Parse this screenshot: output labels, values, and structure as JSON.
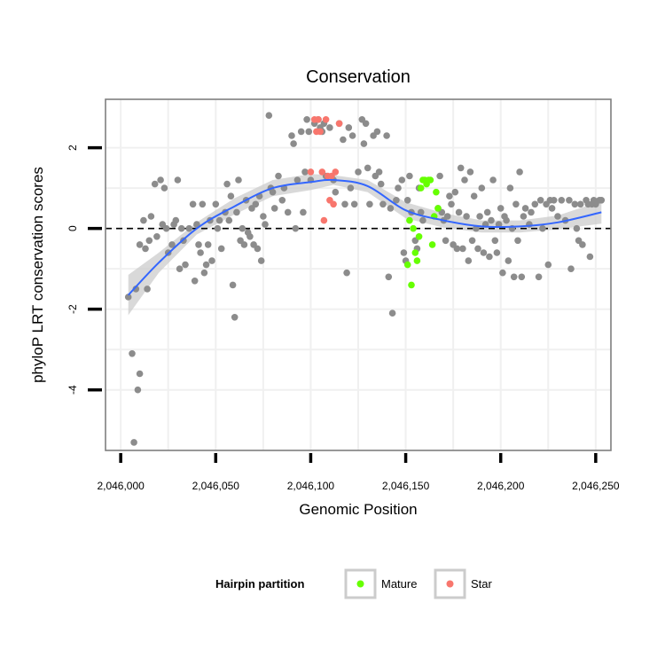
{
  "colors": {
    "background_points": "#8c8c8c",
    "mature": "#66ff00",
    "star": "#f8766d",
    "smooth_line": "#3366ff",
    "ci_band": "#cccccc",
    "grid": "#f0f0f0",
    "panel_border": "#7f7f7f"
  },
  "chart_data": {
    "type": "scatter",
    "title": "Conservation",
    "xlabel": "Genomic Position",
    "ylabel": "phyloP LRT conservation scores",
    "xlim": [
      2045992,
      2046258
    ],
    "ylim": [
      -5.5,
      3.2
    ],
    "x_ticks": [
      2046000,
      2046050,
      2046100,
      2046150,
      2046200,
      2046250
    ],
    "x_tick_labels": [
      "2,046,000",
      "2,046,050",
      "2,046,100",
      "2,046,150",
      "2,046,200",
      "2,046,250"
    ],
    "y_ticks": [
      -4,
      -2,
      0,
      2
    ],
    "y_tick_labels": [
      "-4",
      "-2",
      "0",
      "2"
    ],
    "hline": {
      "y": 0,
      "style": "dashed"
    },
    "grid": true,
    "legend": {
      "title": "Hairpin partition",
      "position": "bottom",
      "entries": [
        {
          "label": "Mature",
          "color_key": "mature"
        },
        {
          "label": "Star",
          "color_key": "star"
        }
      ]
    },
    "series": [
      {
        "name": "background",
        "points": [
          [
            2046004,
            -1.7
          ],
          [
            2046006,
            -3.1
          ],
          [
            2046007,
            -5.3
          ],
          [
            2046008,
            -1.5
          ],
          [
            2046009,
            -4.0
          ],
          [
            2046010,
            -3.6
          ],
          [
            2046010,
            -0.4
          ],
          [
            2046012,
            0.2
          ],
          [
            2046013,
            -0.5
          ],
          [
            2046014,
            -1.5
          ],
          [
            2046015,
            -0.3
          ],
          [
            2046016,
            0.3
          ],
          [
            2046018,
            1.1
          ],
          [
            2046019,
            -0.2
          ],
          [
            2046021,
            1.2
          ],
          [
            2046022,
            0.1
          ],
          [
            2046023,
            1.0
          ],
          [
            2046024,
            0.0
          ],
          [
            2046025,
            -0.6
          ],
          [
            2046027,
            -0.4
          ],
          [
            2046028,
            0.1
          ],
          [
            2046029,
            0.2
          ],
          [
            2046030,
            1.2
          ],
          [
            2046031,
            -1.0
          ],
          [
            2046032,
            0.0
          ],
          [
            2046033,
            -0.3
          ],
          [
            2046034,
            -0.9
          ],
          [
            2046036,
            0.0
          ],
          [
            2046038,
            0.6
          ],
          [
            2046039,
            -1.3
          ],
          [
            2046040,
            0.1
          ],
          [
            2046041,
            -0.4
          ],
          [
            2046042,
            -0.6
          ],
          [
            2046043,
            0.6
          ],
          [
            2046044,
            -1.1
          ],
          [
            2046045,
            -0.9
          ],
          [
            2046046,
            -0.4
          ],
          [
            2046047,
            0.2
          ],
          [
            2046048,
            -0.8
          ],
          [
            2046050,
            0.6
          ],
          [
            2046051,
            0.0
          ],
          [
            2046052,
            0.2
          ],
          [
            2046053,
            -0.5
          ],
          [
            2046055,
            0.4
          ],
          [
            2046056,
            1.1
          ],
          [
            2046057,
            0.2
          ],
          [
            2046058,
            0.8
          ],
          [
            2046059,
            -1.4
          ],
          [
            2046060,
            -2.2
          ],
          [
            2046061,
            0.4
          ],
          [
            2046062,
            1.2
          ],
          [
            2046063,
            -0.3
          ],
          [
            2046064,
            0.0
          ],
          [
            2046065,
            -0.4
          ],
          [
            2046066,
            0.7
          ],
          [
            2046067,
            -0.1
          ],
          [
            2046068,
            -0.2
          ],
          [
            2046069,
            0.5
          ],
          [
            2046070,
            -0.4
          ],
          [
            2046071,
            0.6
          ],
          [
            2046072,
            -0.5
          ],
          [
            2046073,
            0.8
          ],
          [
            2046074,
            -0.8
          ],
          [
            2046075,
            0.3
          ],
          [
            2046076,
            0.1
          ],
          [
            2046078,
            2.8
          ],
          [
            2046079,
            1.0
          ],
          [
            2046080,
            0.9
          ],
          [
            2046081,
            0.5
          ],
          [
            2046083,
            1.3
          ],
          [
            2046085,
            0.7
          ],
          [
            2046086,
            1.0
          ],
          [
            2046088,
            0.4
          ],
          [
            2046090,
            2.3
          ],
          [
            2046091,
            2.1
          ],
          [
            2046092,
            0.0
          ],
          [
            2046093,
            1.2
          ],
          [
            2046095,
            2.4
          ],
          [
            2046096,
            0.4
          ],
          [
            2046097,
            1.4
          ],
          [
            2046098,
            2.7
          ],
          [
            2046099,
            2.4
          ],
          [
            2046100,
            1.2
          ],
          [
            2046102,
            2.6
          ],
          [
            2046104,
            2.7
          ],
          [
            2046105,
            2.5
          ],
          [
            2046106,
            2.4
          ],
          [
            2046107,
            2.6
          ],
          [
            2046108,
            1.3
          ],
          [
            2046110,
            2.5
          ],
          [
            2046112,
            1.2
          ],
          [
            2046113,
            0.9
          ],
          [
            2046115,
            2.6
          ],
          [
            2046117,
            2.2
          ],
          [
            2046118,
            0.6
          ],
          [
            2046119,
            -1.1
          ],
          [
            2046120,
            2.5
          ],
          [
            2046121,
            1.0
          ],
          [
            2046122,
            2.3
          ],
          [
            2046123,
            0.6
          ],
          [
            2046125,
            1.4
          ],
          [
            2046127,
            2.7
          ],
          [
            2046128,
            2.1
          ],
          [
            2046129,
            2.6
          ],
          [
            2046130,
            1.5
          ],
          [
            2046131,
            0.6
          ],
          [
            2046133,
            2.3
          ],
          [
            2046134,
            1.3
          ],
          [
            2046135,
            2.4
          ],
          [
            2046136,
            1.4
          ],
          [
            2046137,
            1.1
          ],
          [
            2046138,
            0.6
          ],
          [
            2046140,
            2.3
          ],
          [
            2046141,
            -1.2
          ],
          [
            2046142,
            0.5
          ],
          [
            2046143,
            -2.1
          ],
          [
            2046145,
            0.7
          ],
          [
            2046146,
            1.0
          ],
          [
            2046148,
            1.2
          ],
          [
            2046149,
            -0.6
          ],
          [
            2046150,
            -0.8
          ],
          [
            2046151,
            0.7
          ],
          [
            2046152,
            1.3
          ],
          [
            2046153,
            0.4
          ],
          [
            2046155,
            -0.3
          ],
          [
            2046156,
            -0.5
          ],
          [
            2046157,
            1.0
          ],
          [
            2046158,
            0.4
          ],
          [
            2046159,
            0.2
          ],
          [
            2046167,
            0.5
          ],
          [
            2046168,
            1.3
          ],
          [
            2046169,
            0.4
          ],
          [
            2046170,
            0.2
          ],
          [
            2046171,
            -0.3
          ],
          [
            2046172,
            0.3
          ],
          [
            2046173,
            0.8
          ],
          [
            2046174,
            0.6
          ],
          [
            2046175,
            -0.4
          ],
          [
            2046176,
            0.9
          ],
          [
            2046177,
            -0.5
          ],
          [
            2046178,
            0.4
          ],
          [
            2046179,
            1.5
          ],
          [
            2046180,
            -0.5
          ],
          [
            2046181,
            1.2
          ],
          [
            2046182,
            0.3
          ],
          [
            2046183,
            -0.8
          ],
          [
            2046184,
            1.4
          ],
          [
            2046185,
            -0.3
          ],
          [
            2046186,
            0.8
          ],
          [
            2046187,
            0.0
          ],
          [
            2046188,
            -0.5
          ],
          [
            2046189,
            0.3
          ],
          [
            2046190,
            1.0
          ],
          [
            2046191,
            -0.6
          ],
          [
            2046192,
            0.1
          ],
          [
            2046193,
            0.4
          ],
          [
            2046194,
            -0.7
          ],
          [
            2046195,
            0.2
          ],
          [
            2046196,
            1.2
          ],
          [
            2046197,
            -0.3
          ],
          [
            2046198,
            -0.6
          ],
          [
            2046199,
            0.1
          ],
          [
            2046200,
            0.5
          ],
          [
            2046201,
            -1.1
          ],
          [
            2046202,
            0.3
          ],
          [
            2046203,
            0.2
          ],
          [
            2046204,
            -0.8
          ],
          [
            2046205,
            1.0
          ],
          [
            2046206,
            0.0
          ],
          [
            2046207,
            -1.2
          ],
          [
            2046208,
            0.6
          ],
          [
            2046209,
            -0.3
          ],
          [
            2046210,
            1.4
          ],
          [
            2046211,
            -1.2
          ],
          [
            2046212,
            0.3
          ],
          [
            2046213,
            0.5
          ],
          [
            2046215,
            0.1
          ],
          [
            2046216,
            0.4
          ],
          [
            2046218,
            0.6
          ],
          [
            2046220,
            -1.2
          ],
          [
            2046221,
            0.7
          ],
          [
            2046222,
            0.0
          ],
          [
            2046224,
            0.6
          ],
          [
            2046225,
            -0.9
          ],
          [
            2046226,
            0.7
          ],
          [
            2046227,
            0.5
          ],
          [
            2046228,
            0.7
          ],
          [
            2046230,
            0.3
          ],
          [
            2046232,
            0.7
          ],
          [
            2046234,
            0.2
          ],
          [
            2046236,
            0.7
          ],
          [
            2046237,
            -1.0
          ],
          [
            2046239,
            0.6
          ],
          [
            2046240,
            0.0
          ],
          [
            2046241,
            -0.3
          ],
          [
            2046242,
            0.6
          ],
          [
            2046243,
            -0.4
          ],
          [
            2046245,
            0.7
          ],
          [
            2046246,
            0.6
          ],
          [
            2046247,
            -0.7
          ],
          [
            2046248,
            0.6
          ],
          [
            2046249,
            0.7
          ],
          [
            2046250,
            0.6
          ],
          [
            2046252,
            0.7
          ],
          [
            2046253,
            0.7
          ]
        ]
      },
      {
        "name": "Mature",
        "points": [
          [
            2046151,
            -0.9
          ],
          [
            2046152,
            0.2
          ],
          [
            2046153,
            -1.4
          ],
          [
            2046154,
            0.0
          ],
          [
            2046155,
            -0.6
          ],
          [
            2046156,
            -0.8
          ],
          [
            2046157,
            -0.2
          ],
          [
            2046158,
            1.0
          ],
          [
            2046159,
            1.2
          ],
          [
            2046160,
            1.2
          ],
          [
            2046161,
            1.1
          ],
          [
            2046162,
            1.2
          ],
          [
            2046163,
            1.2
          ],
          [
            2046164,
            -0.4
          ],
          [
            2046165,
            0.3
          ],
          [
            2046166,
            0.9
          ],
          [
            2046167,
            0.5
          ]
        ]
      },
      {
        "name": "Star",
        "points": [
          [
            2046100,
            1.4
          ],
          [
            2046102,
            2.7
          ],
          [
            2046103,
            2.4
          ],
          [
            2046104,
            2.7
          ],
          [
            2046105,
            2.4
          ],
          [
            2046106,
            1.4
          ],
          [
            2046107,
            0.2
          ],
          [
            2046108,
            2.7
          ],
          [
            2046109,
            1.3
          ],
          [
            2046110,
            0.7
          ],
          [
            2046111,
            1.3
          ],
          [
            2046112,
            0.6
          ],
          [
            2046113,
            1.4
          ],
          [
            2046115,
            2.6
          ]
        ]
      }
    ],
    "smooth": {
      "x": [
        2046004,
        2046020,
        2046040,
        2046060,
        2046080,
        2046100,
        2046112,
        2046130,
        2046150,
        2046170,
        2046190,
        2046210,
        2046230,
        2046253
      ],
      "y": [
        -1.65,
        -0.85,
        0.0,
        0.55,
        1.0,
        1.15,
        1.2,
        1.05,
        0.45,
        0.2,
        0.05,
        0.05,
        0.15,
        0.4
      ],
      "ci_upper": [
        -1.15,
        -0.6,
        0.15,
        0.75,
        1.2,
        1.35,
        1.32,
        1.2,
        0.65,
        0.38,
        0.2,
        0.2,
        0.32,
        0.68
      ],
      "ci_lower": [
        -2.15,
        -1.1,
        -0.15,
        0.35,
        0.8,
        0.95,
        1.08,
        0.9,
        0.25,
        0.02,
        -0.1,
        -0.1,
        -0.02,
        0.12
      ]
    }
  }
}
